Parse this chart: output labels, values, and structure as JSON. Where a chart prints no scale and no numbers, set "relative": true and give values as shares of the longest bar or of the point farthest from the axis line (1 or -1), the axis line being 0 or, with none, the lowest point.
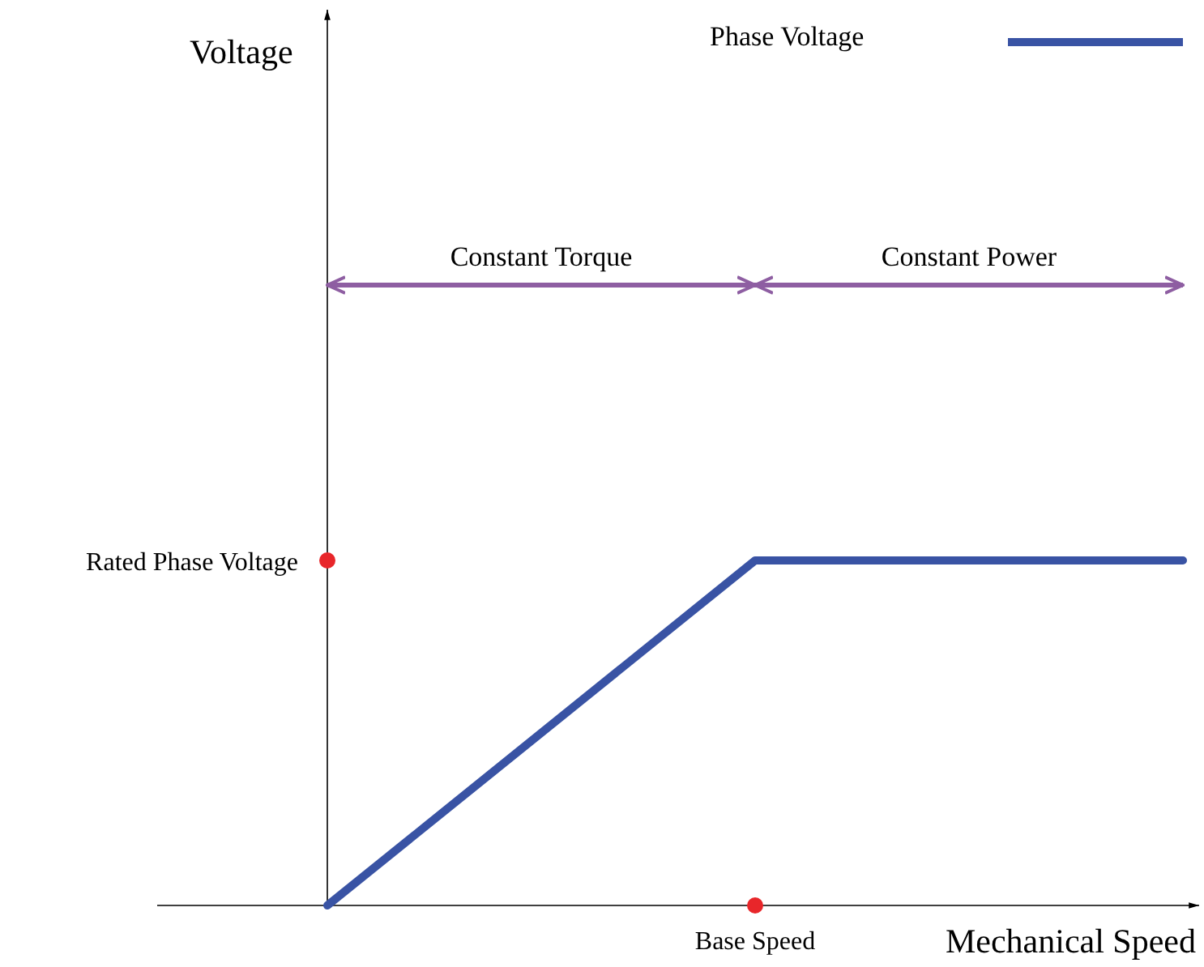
{
  "chart_data": {
    "type": "line",
    "xlabel": "Mechanical Speed",
    "relative": true,
    "categories": [
      null,
      null,
      null
    ],
    "series": [
      {
        "name": "Phase Voltage",
        "color": "#3953a4",
        "values": [
          0,
          1,
          1
        ]
      }
    ],
    "annotations": [
      "Rated Phase Voltage",
      "Base Speed",
      "Constant Torque",
      "Constant Power",
      "Voltage"
    ],
    "legend": "top right"
  }
}
